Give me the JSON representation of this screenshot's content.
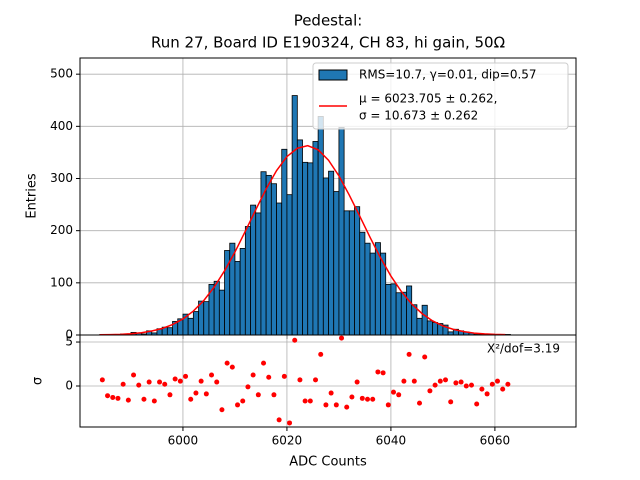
{
  "chart_data": [
    {
      "type": "histogram",
      "title": [
        "Pedestal:",
        "Run 27, Board ID E190324, CH 83, hi gain, 50Ω"
      ],
      "ylabel": "Entries",
      "label": "RMS=10.7, γ=0.01, dip=0.57",
      "color": "#1f77b4",
      "edgecolor": "#000000",
      "bins": [
        5984,
        5985,
        5986,
        5987,
        5988,
        5989,
        5990,
        5991,
        5992,
        5993,
        5994,
        5995,
        5996,
        5997,
        5998,
        5999,
        6000,
        6001,
        6002,
        6003,
        6004,
        6005,
        6006,
        6007,
        6008,
        6009,
        6010,
        6011,
        6012,
        6013,
        6014,
        6015,
        6016,
        6017,
        6018,
        6019,
        6020,
        6021,
        6022,
        6023,
        6024,
        6025,
        6026,
        6027,
        6028,
        6029,
        6030,
        6031,
        6032,
        6033,
        6034,
        6035,
        6036,
        6037,
        6038,
        6039,
        6040,
        6041,
        6042,
        6043,
        6044,
        6045,
        6046,
        6047,
        6048,
        6049,
        6050,
        6051,
        6052,
        6053,
        6054,
        6055,
        6056,
        6057,
        6058,
        6059,
        6060,
        6061,
        6062,
        6063
      ],
      "values": [
        1,
        1,
        1,
        1,
        2,
        1,
        5,
        4,
        2,
        8,
        4,
        12,
        15,
        14,
        26,
        31,
        40,
        32,
        45,
        65,
        64,
        97,
        103,
        86,
        162,
        176,
        141,
        166,
        208,
        249,
        234,
        313,
        306,
        290,
        253,
        356,
        269,
        459,
        374,
        331,
        330,
        371,
        419,
        301,
        314,
        275,
        398,
        238,
        238,
        246,
        197,
        176,
        157,
        177,
        157,
        97,
        98,
        81,
        82,
        94,
        58,
        32,
        57,
        27,
        24,
        22,
        19,
        6,
        11,
        8,
        6,
        4,
        1,
        2,
        1,
        1,
        1,
        1,
        1
      ],
      "series": [
        {
          "name": [
            "μ = 6023.705 ± 0.262,",
            "σ = 10.673 ± 0.262"
          ],
          "color": "#ff0000",
          "x": [
            5984,
            5986,
            5988,
            5990,
            5992,
            5994,
            5996,
            5998,
            6000,
            6002,
            6004,
            6006,
            6008,
            6010,
            6012,
            6014,
            6016,
            6018,
            6020,
            6022,
            6024,
            6026,
            6028,
            6030,
            6032,
            6034,
            6036,
            6038,
            6040,
            6042,
            6044,
            6046,
            6048,
            6050,
            6052,
            6054,
            6056,
            6058,
            6060,
            6062
          ],
          "values": [
            0.4,
            0.7,
            1.3,
            2.5,
            4.4,
            7.6,
            12.5,
            20,
            30.8,
            45.9,
            66,
            91.8,
            123,
            159,
            199,
            240,
            280,
            315,
            342,
            358,
            363,
            355,
            335,
            305,
            268,
            228,
            187,
            148,
            113,
            83.5,
            59.4,
            41,
            27.2,
            17.4,
            10.8,
            6.5,
            3.7,
            2.1,
            1.1,
            0.6
          ]
        }
      ],
      "xlim": [
        5980.2,
        6075.6
      ],
      "xticks": [
        6000,
        6020,
        6040,
        6060
      ],
      "xticklabels": false,
      "ylim": [
        0,
        531
      ],
      "yticks": [
        0,
        100,
        200,
        300,
        400,
        500
      ],
      "grid": true,
      "legend": "upper right"
    },
    {
      "type": "scatter",
      "xlabel": "ADC Counts",
      "ylabel": "σ",
      "annotation": "X²/dof=3.19",
      "color": "#ff0000",
      "x": [
        5984.5,
        5985.5,
        5986.5,
        5987.5,
        5988.5,
        5989.5,
        5990.5,
        5991.5,
        5992.5,
        5993.5,
        5994.5,
        5995.5,
        5996.5,
        5997.5,
        5998.5,
        5999.5,
        6000.5,
        6001.5,
        6002.5,
        6003.5,
        6004.5,
        6005.5,
        6006.5,
        6007.5,
        6008.5,
        6009.5,
        6010.5,
        6011.5,
        6012.5,
        6013.5,
        6014.5,
        6015.5,
        6016.5,
        6017.5,
        6018.5,
        6019.5,
        6020.5,
        6021.5,
        6022.5,
        6023.5,
        6024.5,
        6025.5,
        6026.5,
        6027.5,
        6028.5,
        6029.5,
        6030.5,
        6031.5,
        6032.5,
        6033.5,
        6034.5,
        6035.5,
        6036.5,
        6037.5,
        6038.5,
        6039.5,
        6040.5,
        6041.5,
        6042.5,
        6043.5,
        6044.5,
        6045.5,
        6046.5,
        6047.5,
        6048.5,
        6049.5,
        6050.5,
        6051.5,
        6052.5,
        6053.5,
        6054.5,
        6055.5,
        6056.5,
        6057.5,
        6058.5,
        6059.5,
        6060.5,
        6061.5,
        6062.5
      ],
      "values": [
        0.7,
        -1.1,
        -1.3,
        -1.4,
        0.2,
        -1.6,
        1.25,
        0.1,
        -1.5,
        0.45,
        -1.7,
        0.45,
        0.2,
        -1.0,
        0.8,
        0.55,
        1.1,
        -1.5,
        -0.8,
        0.55,
        -0.9,
        1.25,
        0.45,
        -2.7,
        2.6,
        2.15,
        -2.15,
        -1.7,
        -0.1,
        1.25,
        -1.0,
        2.6,
        1.0,
        -1.0,
        -3.85,
        1.1,
        -4.2,
        5.2,
        0.7,
        -1.7,
        -1.7,
        0.7,
        3.6,
        -2.15,
        -0.8,
        -2.15,
        5.45,
        -2.4,
        -1.25,
        0.45,
        -1.4,
        -1.5,
        -1.5,
        1.6,
        1.5,
        -2.15,
        -0.7,
        -1.0,
        0.55,
        3.6,
        0.55,
        -1.95,
        3.3,
        -0.55,
        0.1,
        0.55,
        0.7,
        -1.8,
        0.35,
        0.45,
        0,
        0.1,
        -2.05,
        -0.35,
        -0.9,
        0.2,
        0.55,
        -0.35,
        0.2
      ],
      "xlim": [
        5980.2,
        6075.6
      ],
      "xticks": [
        6000,
        6020,
        6040,
        6060
      ],
      "ylim": [
        -4.66,
        5.8
      ],
      "yticks": [
        0,
        5
      ],
      "grid": true
    }
  ]
}
